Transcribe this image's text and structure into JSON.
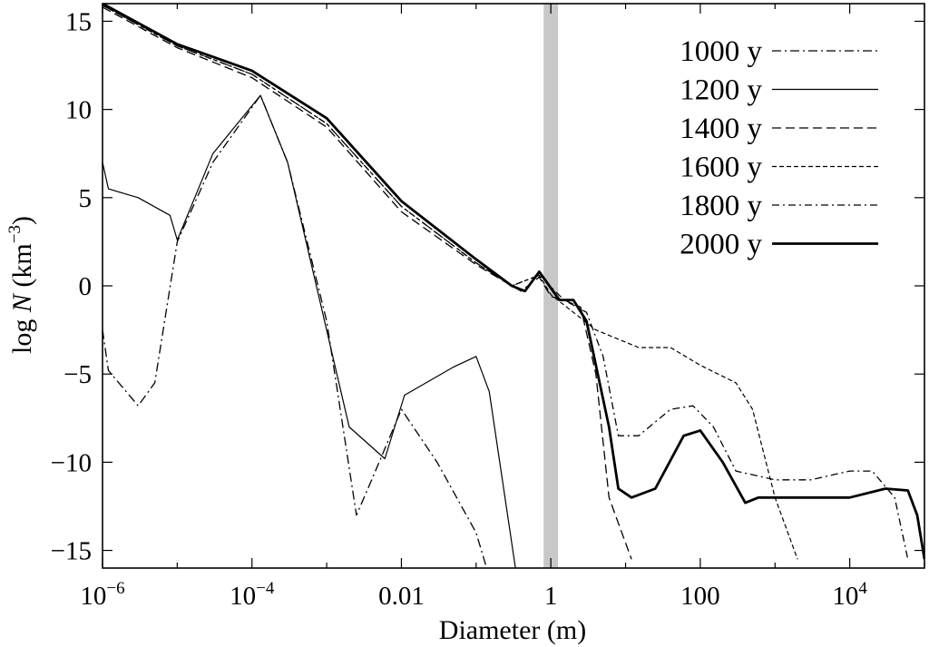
{
  "chart_data": {
    "type": "line",
    "xlabel": "Diameter (m)",
    "ylabel": {
      "prefix": "log ",
      "var": "N",
      "unit_open": " (km",
      "unit_exp": "−3",
      "unit_close": ")"
    },
    "x_scale": "log",
    "xlim": [
      1e-06,
      100000
    ],
    "ylim": [
      -16,
      16
    ],
    "x_ticks": [
      {
        "value": 1e-06,
        "base": "10",
        "exp": "−6"
      },
      {
        "value": 0.0001,
        "base": "10",
        "exp": "−4"
      },
      {
        "value": 0.01,
        "base": "0.01",
        "exp": ""
      },
      {
        "value": 1,
        "base": "1",
        "exp": ""
      },
      {
        "value": 100,
        "base": "100",
        "exp": ""
      },
      {
        "value": 10000,
        "base": "10",
        "exp": "4"
      }
    ],
    "y_ticks": [
      {
        "value": 15,
        "label": "15"
      },
      {
        "value": 10,
        "label": "10"
      },
      {
        "value": 5,
        "label": "5"
      },
      {
        "value": 0,
        "label": "0"
      },
      {
        "value": -5,
        "label": "−5"
      },
      {
        "value": -10,
        "label": "−10"
      },
      {
        "value": -15,
        "label": "−15"
      }
    ],
    "shaded_band": {
      "x_from": 0.8,
      "x_to": 1.25,
      "color": "#c8c8c8"
    },
    "legend_position": "top-right",
    "series": [
      {
        "name": "1000 y",
        "style": {
          "dash": "10 4 2 4",
          "width": 1.3
        },
        "points": [
          [
            1e-06,
            -2.5
          ],
          [
            1.2e-06,
            -4.8
          ],
          [
            3e-06,
            -6.8
          ],
          [
            5e-06,
            -5.5
          ],
          [
            1e-05,
            2.5
          ],
          [
            3e-05,
            7
          ],
          [
            0.00013,
            10.8
          ],
          [
            0.0003,
            7
          ],
          [
            0.001,
            -2
          ],
          [
            0.0025,
            -13
          ],
          [
            0.004,
            -11
          ],
          [
            0.01,
            -7
          ],
          [
            0.03,
            -10
          ],
          [
            0.1,
            -14
          ],
          [
            0.15,
            -16.5
          ]
        ]
      },
      {
        "name": "1200 y",
        "style": {
          "dash": "",
          "width": 1.2
        },
        "points": [
          [
            1e-06,
            7
          ],
          [
            1.2e-06,
            5.5
          ],
          [
            3e-06,
            5
          ],
          [
            8e-06,
            4
          ],
          [
            1e-05,
            2.6
          ],
          [
            3e-05,
            7.5
          ],
          [
            0.00013,
            10.8
          ],
          [
            0.0003,
            7
          ],
          [
            0.002,
            -8
          ],
          [
            0.006,
            -9.8
          ],
          [
            0.011,
            -6.2
          ],
          [
            0.05,
            -4.6
          ],
          [
            0.1,
            -4
          ],
          [
            0.15,
            -6
          ],
          [
            0.35,
            -16.5
          ]
        ]
      },
      {
        "name": "1400 y",
        "style": {
          "dash": "10 5",
          "width": 1.3
        },
        "points": [
          [
            1e-06,
            15.8
          ],
          [
            1e-05,
            13.5
          ],
          [
            0.0001,
            11.8
          ],
          [
            0.001,
            9
          ],
          [
            0.01,
            4.2
          ],
          [
            0.1,
            1.2
          ],
          [
            0.3,
            0
          ],
          [
            0.4,
            -0.3
          ],
          [
            0.7,
            0.5
          ],
          [
            1,
            -0.6
          ],
          [
            1.5,
            -0.8
          ],
          [
            2.5,
            -1.2
          ],
          [
            4,
            -5
          ],
          [
            6,
            -12
          ],
          [
            12,
            -15.5
          ]
        ]
      },
      {
        "name": "1600 y",
        "style": {
          "dash": "5 3",
          "width": 1.2
        },
        "points": [
          [
            1e-06,
            15.9
          ],
          [
            1e-05,
            13.6
          ],
          [
            0.0001,
            12
          ],
          [
            0.001,
            9.2
          ],
          [
            0.01,
            4.5
          ],
          [
            0.1,
            1.3
          ],
          [
            0.3,
            0
          ],
          [
            0.7,
            0.6
          ],
          [
            1,
            -0.5
          ],
          [
            2,
            -1.5
          ],
          [
            4,
            -2.5
          ],
          [
            15,
            -3.5
          ],
          [
            40,
            -3.5
          ],
          [
            100,
            -4.5
          ],
          [
            300,
            -5.5
          ],
          [
            500,
            -7
          ],
          [
            1000,
            -12
          ],
          [
            2000,
            -15.5
          ]
        ]
      },
      {
        "name": "1800 y",
        "style": {
          "dash": "8 4 2 4",
          "width": 1.3
        },
        "points": [
          [
            1e-06,
            15.9
          ],
          [
            1e-05,
            13.6
          ],
          [
            0.0001,
            12
          ],
          [
            0.001,
            9.2
          ],
          [
            0.01,
            4.5
          ],
          [
            0.1,
            1.3
          ],
          [
            0.3,
            0
          ],
          [
            0.7,
            0.6
          ],
          [
            1.5,
            -0.8
          ],
          [
            3,
            -1.5
          ],
          [
            5,
            -4
          ],
          [
            8,
            -8.5
          ],
          [
            15,
            -8.5
          ],
          [
            40,
            -7
          ],
          [
            80,
            -6.8
          ],
          [
            150,
            -8
          ],
          [
            300,
            -10.5
          ],
          [
            1000,
            -11
          ],
          [
            3000,
            -11
          ],
          [
            10000,
            -10.5
          ],
          [
            20000,
            -10.5
          ],
          [
            40000,
            -12
          ],
          [
            60000,
            -15.5
          ]
        ]
      },
      {
        "name": "2000 y",
        "style": {
          "dash": "",
          "width": 2.8
        },
        "points": [
          [
            1e-06,
            16
          ],
          [
            1e-05,
            13.7
          ],
          [
            0.0001,
            12.2
          ],
          [
            0.001,
            9.5
          ],
          [
            0.01,
            4.8
          ],
          [
            0.1,
            1.5
          ],
          [
            0.3,
            0
          ],
          [
            0.45,
            -0.3
          ],
          [
            0.7,
            0.8
          ],
          [
            1.3,
            -0.8
          ],
          [
            2,
            -0.8
          ],
          [
            3,
            -2
          ],
          [
            6,
            -8
          ],
          [
            8,
            -11.5
          ],
          [
            12,
            -12
          ],
          [
            25,
            -11.5
          ],
          [
            60,
            -8.5
          ],
          [
            100,
            -8.2
          ],
          [
            200,
            -10
          ],
          [
            400,
            -12.3
          ],
          [
            600,
            -12
          ],
          [
            1000,
            -12
          ],
          [
            3000,
            -12
          ],
          [
            10000,
            -12
          ],
          [
            30000,
            -11.5
          ],
          [
            60000,
            -11.6
          ],
          [
            80000,
            -13
          ],
          [
            100000,
            -15.5
          ]
        ]
      }
    ]
  }
}
